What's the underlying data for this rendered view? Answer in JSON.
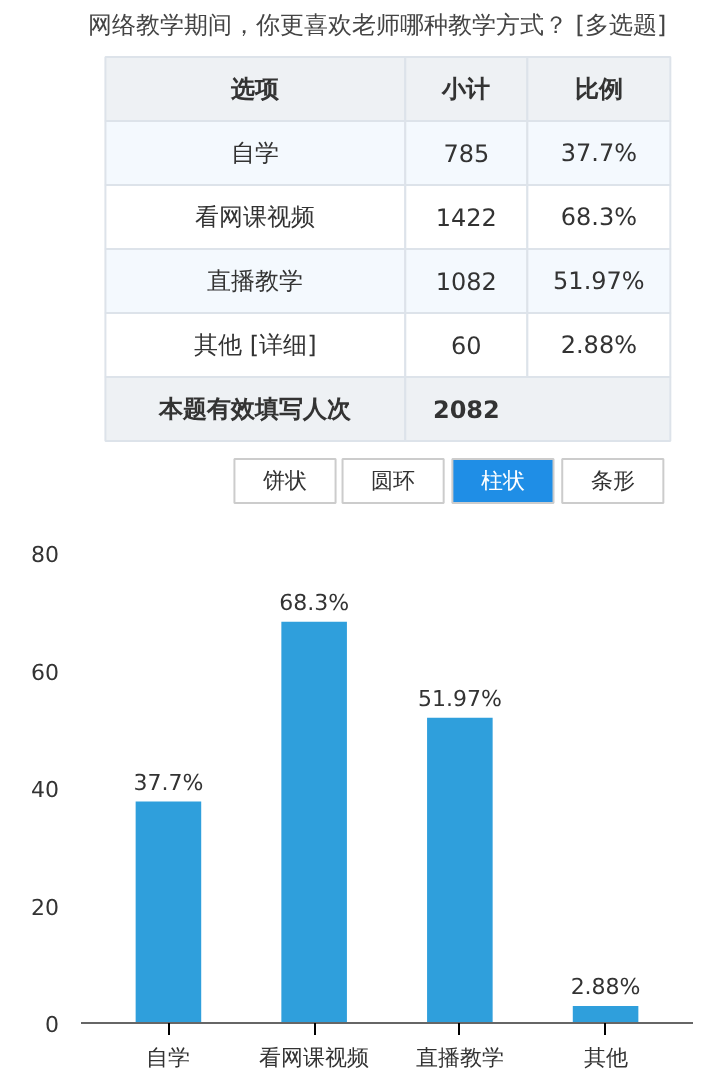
{
  "chart_data": [
    {
      "type": "other",
      "title": "网络教学期间，你更喜欢老师哪种教学方式？ [多选题]",
      "annotations": [
        "选项",
        "小计",
        "比例",
        "自学",
        "785",
        "37.7%",
        "看网课视频",
        "1422",
        "68.3%",
        "直播教学",
        "1082",
        "51.97%",
        "其他 [详细]",
        "60",
        "2.88%",
        "本题有效填写人次",
        "2082"
      ]
    },
    {
      "type": "bar",
      "annotations": [
        "饼状",
        "圆环",
        "柱状",
        "条形"
      ],
      "categories": [
        "自学",
        "看网课视频",
        "直播教学",
        "其他"
      ],
      "values": [
        37.7,
        68.3,
        51.97,
        2.88
      ],
      "value_labels": [
        "37.7%",
        "68.3%",
        "51.97%",
        "2.88%"
      ],
      "color": "#2f9fdc",
      "ylim": [
        0,
        80
      ],
      "yticks": [
        0,
        20,
        40,
        60,
        80
      ],
      "grid": false
    }
  ]
}
